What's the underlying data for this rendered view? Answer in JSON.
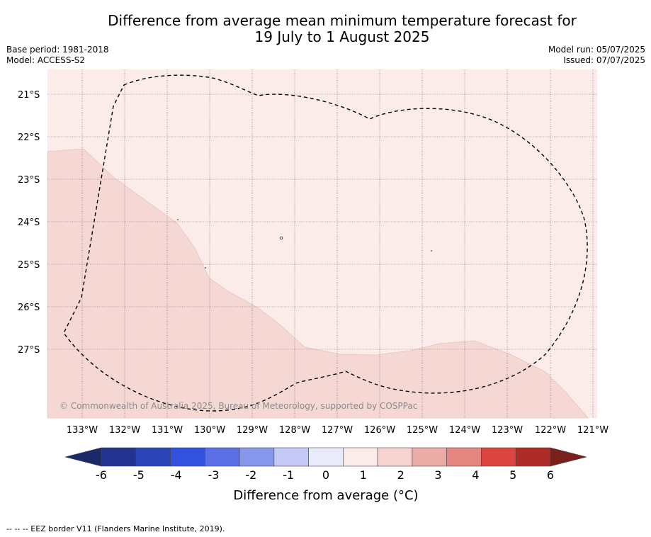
{
  "title_line1": "Difference from average mean minimum temperature forecast for",
  "title_line2": "19 July to 1 August 2025",
  "base_period": "Base period: 1981-2018",
  "model": "Model: ACCESS-S2",
  "model_run": "Model run: 05/07/2025",
  "issued": "Issued: 07/07/2025",
  "copyright": "© Commonwealth of Australia 2025, Bureau of Meteorology, supported by COSPPac",
  "latitudes": [
    "21°S",
    "22°S",
    "23°S",
    "24°S",
    "25°S",
    "26°S",
    "27°S"
  ],
  "longitudes": [
    "133°W",
    "132°W",
    "131°W",
    "130°W",
    "129°W",
    "128°W",
    "127°W",
    "126°W",
    "125°W",
    "124°W",
    "123°W",
    "122°W",
    "121°W"
  ],
  "colorbar": {
    "title": "Difference from average (°C)",
    "ticks": [
      "-6",
      "-5",
      "-4",
      "-3",
      "-2",
      "-1",
      "0",
      "1",
      "2",
      "3",
      "4",
      "5",
      "6"
    ],
    "colors": [
      "#22348f",
      "#2a44b8",
      "#3252de",
      "#5a70e4",
      "#8797ec",
      "#c3c9f4",
      "#e9ebfb",
      "#fbecea",
      "#f5d3d1",
      "#ebaca8",
      "#e4857f",
      "#da463f",
      "#ad2c27"
    ],
    "low_extend_color": "#1b2869",
    "high_extend_color": "#7a201b"
  },
  "map_colors": {
    "zero_to_one": "#fbecea",
    "one_to_two": "#f5d7d4"
  },
  "footnote": "--  --  -- EEZ border V11 (Flanders Marine Institute, 2019)."
}
